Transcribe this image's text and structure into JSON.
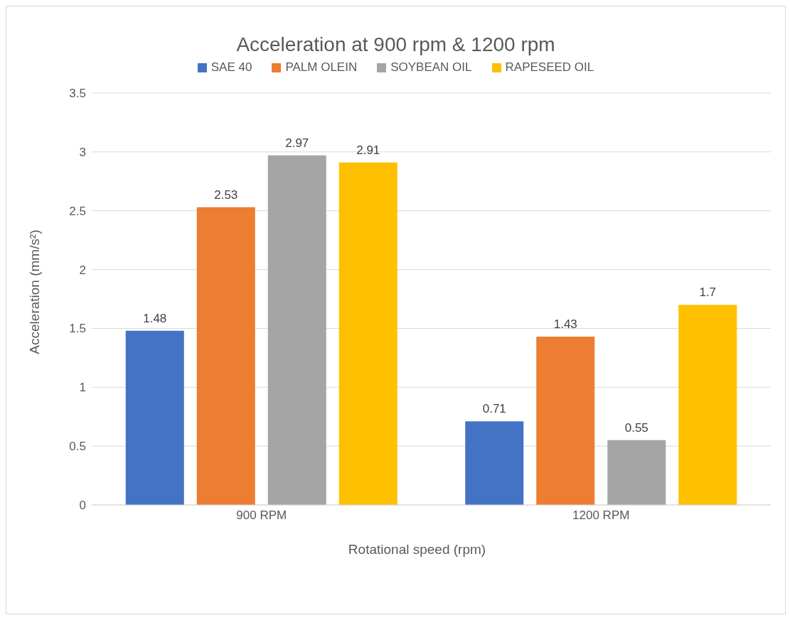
{
  "chart_data": {
    "type": "bar",
    "title": "Acceleration at 900 rpm & 1200 rpm",
    "xlabel": "Rotational speed (rpm)",
    "ylabel": "Acceleration (mm/s²)",
    "categories": [
      "900 RPM",
      "1200 RPM"
    ],
    "series": [
      {
        "name": "SAE 40",
        "color": "#4472c4",
        "values": [
          1.48,
          0.71
        ]
      },
      {
        "name": "PALM OLEIN",
        "color": "#ed7d31",
        "values": [
          2.53,
          1.43
        ]
      },
      {
        "name": "SOYBEAN OIL",
        "color": "#a5a5a5",
        "values": [
          2.97,
          0.55
        ]
      },
      {
        "name": "RAPESEED OIL",
        "color": "#ffc000",
        "values": [
          2.91,
          1.7
        ]
      }
    ],
    "ylim": [
      0,
      3.5
    ],
    "yticks": [
      0,
      0.5,
      1,
      1.5,
      2,
      2.5,
      3,
      3.5
    ],
    "grid": "y",
    "legend": "top",
    "data_labels": true
  }
}
